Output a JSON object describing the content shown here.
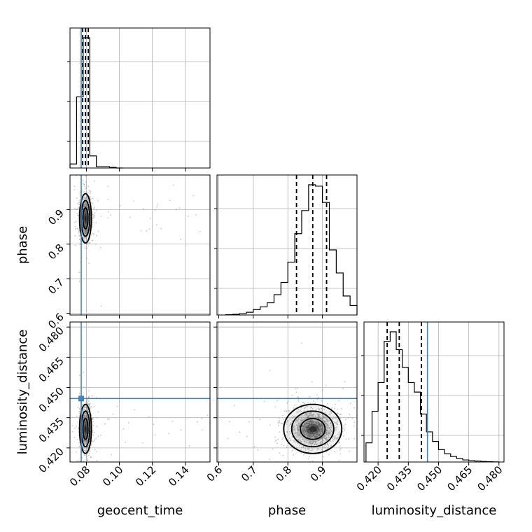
{
  "chart_data": {
    "type": "corner",
    "parameters": [
      "geocent_time",
      "phase",
      "luminosity_distance"
    ],
    "axis_labels": {
      "geocent_time": "geocent_time",
      "phase": "phase",
      "luminosity_distance": "luminosity_distance"
    },
    "ranges": {
      "geocent_time": [
        0.07,
        0.155
      ],
      "phase": [
        0.595,
        1.0
      ],
      "luminosity_distance": [
        0.413,
        0.4825
      ]
    },
    "ticks": {
      "geocent_time": [
        "0.08",
        "0.10",
        "0.12",
        "0.14"
      ],
      "phase": [
        "0.6",
        "0.7",
        "0.8",
        "0.9"
      ],
      "luminosity_distance": [
        "0.420",
        "0.435",
        "0.450",
        "0.465",
        "0.480"
      ]
    },
    "tick_values": {
      "geocent_time": [
        0.08,
        0.1,
        0.12,
        0.14
      ],
      "phase": [
        0.6,
        0.7,
        0.8,
        0.9
      ],
      "luminosity_distance": [
        0.42,
        0.435,
        0.45,
        0.465,
        0.48
      ]
    },
    "truths": {
      "geocent_time": 0.0768,
      "luminosity_distance": 0.4445
    },
    "quantiles": {
      "geocent_time": [
        0.0777,
        0.0794,
        0.0811
      ],
      "phase": [
        0.825,
        0.872,
        0.912
      ],
      "luminosity_distance": [
        0.4245,
        0.4305,
        0.4415
      ]
    },
    "histograms": {
      "geocent_time": {
        "edges": [
          0.07,
          0.074,
          0.078,
          0.082,
          0.086,
          0.09,
          0.094,
          0.098,
          0.102
        ],
        "counts": [
          0.03,
          0.53,
          0.97,
          0.09,
          0.01,
          0.01,
          0.005,
          0.0
        ]
      },
      "phase": {
        "edges": [
          0.62,
          0.64,
          0.66,
          0.68,
          0.7,
          0.72,
          0.74,
          0.76,
          0.78,
          0.8,
          0.82,
          0.84,
          0.86,
          0.88,
          0.9,
          0.92,
          0.94,
          0.96,
          0.98,
          1.0
        ],
        "counts": [
          0.003,
          0.005,
          0.01,
          0.02,
          0.04,
          0.06,
          0.09,
          0.15,
          0.24,
          0.39,
          0.6,
          0.77,
          0.96,
          0.95,
          0.83,
          0.48,
          0.31,
          0.14,
          0.07
        ]
      },
      "luminosity_distance": {
        "edges": [
          0.414,
          0.417,
          0.42,
          0.423,
          0.426,
          0.429,
          0.432,
          0.435,
          0.438,
          0.441,
          0.444,
          0.447,
          0.45,
          0.453,
          0.456,
          0.459,
          0.462,
          0.465,
          0.468,
          0.471,
          0.474,
          0.477,
          0.48
        ],
        "counts": [
          0.14,
          0.37,
          0.58,
          0.88,
          0.95,
          0.82,
          0.69,
          0.58,
          0.51,
          0.35,
          0.22,
          0.15,
          0.09,
          0.06,
          0.04,
          0.025,
          0.015,
          0.01,
          0.007,
          0.004,
          0.002,
          0.001
        ]
      }
    },
    "pair_plots": [
      {
        "x": "geocent_time",
        "y": "phase",
        "center": [
          0.0794,
          0.878
        ],
        "spread": [
          0.0018,
          0.034
        ]
      },
      {
        "x": "geocent_time",
        "y": "luminosity_distance",
        "center": [
          0.0794,
          0.43
        ],
        "spread": [
          0.0018,
          0.0058
        ]
      },
      {
        "x": "phase",
        "y": "luminosity_distance",
        "center": [
          0.872,
          0.43
        ],
        "spread": [
          0.042,
          0.0058
        ]
      }
    ],
    "grid": true,
    "colors": {
      "histogram": "#000000",
      "truth": "#4682b4",
      "points": "#9a9a9a",
      "grid": "#b0b0b0"
    }
  }
}
